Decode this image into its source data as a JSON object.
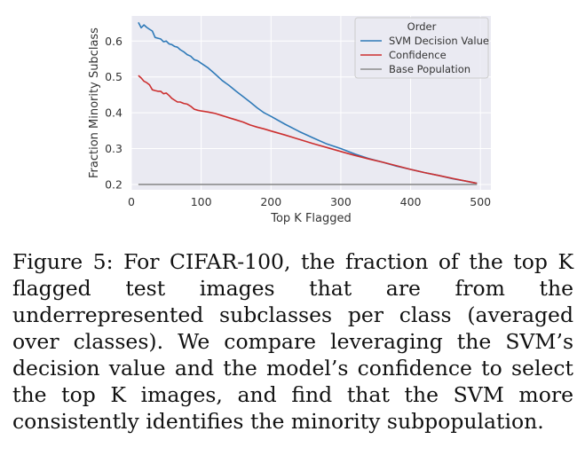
{
  "chart_data": {
    "type": "line",
    "title": "",
    "xlabel": "Top K Flagged",
    "ylabel": "Fraction Minority Subclass",
    "xlim": [
      0,
      515
    ],
    "ylim": [
      0.185,
      0.67
    ],
    "xticks": [
      0,
      100,
      200,
      300,
      400,
      500
    ],
    "yticks": [
      0.2,
      0.3,
      0.4,
      0.5,
      0.6
    ],
    "xtick_labels": [
      "0",
      "100",
      "200",
      "300",
      "400",
      "500"
    ],
    "ytick_labels": [
      "0.2",
      "0.3",
      "0.4",
      "0.5",
      "0.6"
    ],
    "grid": true,
    "legend": {
      "title": "Order",
      "position": "top-right"
    },
    "series": [
      {
        "name": "SVM Decision Value",
        "color": "#2f7ab8",
        "x": [
          10,
          14,
          18,
          22,
          26,
          30,
          34,
          38,
          42,
          46,
          50,
          54,
          58,
          62,
          66,
          70,
          75,
          80,
          85,
          90,
          95,
          100,
          110,
          120,
          130,
          140,
          150,
          160,
          170,
          180,
          190,
          200,
          220,
          240,
          260,
          280,
          300,
          320,
          340,
          360,
          380,
          400,
          420,
          440,
          460,
          480,
          495
        ],
        "values": [
          0.652,
          0.637,
          0.645,
          0.638,
          0.633,
          0.628,
          0.61,
          0.608,
          0.606,
          0.598,
          0.6,
          0.592,
          0.59,
          0.585,
          0.583,
          0.576,
          0.57,
          0.562,
          0.558,
          0.548,
          0.545,
          0.538,
          0.525,
          0.508,
          0.49,
          0.476,
          0.46,
          0.445,
          0.43,
          0.414,
          0.4,
          0.39,
          0.368,
          0.348,
          0.33,
          0.313,
          0.3,
          0.285,
          0.272,
          0.262,
          0.251,
          0.242,
          0.233,
          0.225,
          0.216,
          0.209,
          0.203
        ]
      },
      {
        "name": "Confidence",
        "color": "#cc2f2f",
        "x": [
          10,
          14,
          18,
          22,
          26,
          30,
          34,
          38,
          42,
          46,
          50,
          54,
          58,
          62,
          66,
          70,
          75,
          80,
          85,
          90,
          95,
          100,
          110,
          120,
          130,
          140,
          150,
          160,
          170,
          180,
          190,
          200,
          220,
          240,
          260,
          280,
          300,
          320,
          340,
          360,
          380,
          400,
          420,
          440,
          460,
          480,
          495
        ],
        "values": [
          0.504,
          0.497,
          0.488,
          0.484,
          0.478,
          0.464,
          0.462,
          0.46,
          0.46,
          0.453,
          0.455,
          0.448,
          0.44,
          0.435,
          0.43,
          0.43,
          0.426,
          0.424,
          0.418,
          0.41,
          0.407,
          0.405,
          0.402,
          0.398,
          0.392,
          0.386,
          0.38,
          0.374,
          0.366,
          0.36,
          0.355,
          0.349,
          0.338,
          0.326,
          0.314,
          0.303,
          0.292,
          0.281,
          0.271,
          0.262,
          0.252,
          0.242,
          0.233,
          0.225,
          0.217,
          0.209,
          0.203
        ]
      },
      {
        "name": "Base Population",
        "color": "#8c8c8c",
        "x": [
          10,
          495
        ],
        "values": [
          0.2,
          0.2
        ]
      }
    ]
  },
  "caption": "Figure 5: For CIFAR-100, the fraction of the top K flagged test images that are from the underrepresented subclasses per class (averaged over classes). We compare leveraging the SVM’s decision value and the model’s confidence to select the top K images, and find that the SVM more consistently identifies the minority subpopulation."
}
